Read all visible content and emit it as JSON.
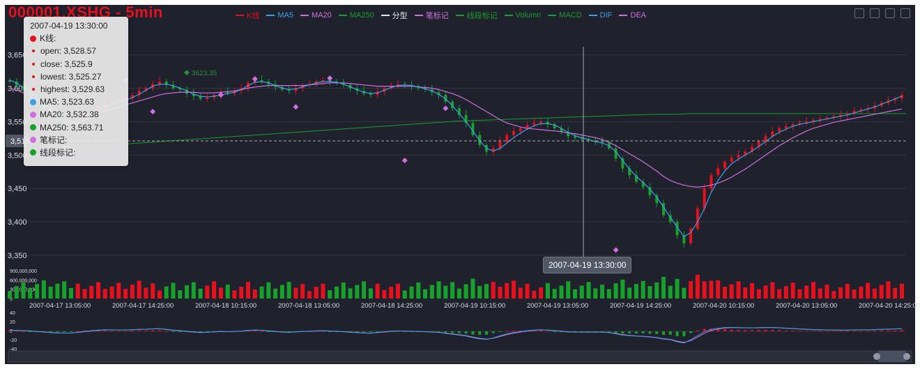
{
  "title": "000001.XSHG - 5min",
  "legend": [
    {
      "label": "K线",
      "color": "#e8101d"
    },
    {
      "label": "MA5",
      "color": "#3aa1e6"
    },
    {
      "label": "MA20",
      "color": "#d070e0"
    },
    {
      "label": "MA250",
      "color": "#17a02a"
    },
    {
      "label": "分型",
      "color": "#e5e5e5"
    },
    {
      "label": "笔标记",
      "color": "#d070e0"
    },
    {
      "label": "线段标记",
      "color": "#17a02a"
    },
    {
      "label": "Volumn",
      "color": "#17a02a"
    },
    {
      "label": "MACD",
      "color": "#17a02a"
    },
    {
      "label": "DIF",
      "color": "#3aa1e6"
    },
    {
      "label": "DEA",
      "color": "#d070e0"
    }
  ],
  "toolbox": [
    "zoom-icon",
    "zoom-reset-icon",
    "restore-icon",
    "save-image-icon"
  ],
  "tooltip": {
    "time": "2007-04-19 13:30:00",
    "kline_label": "K线:",
    "open": "open: 3,528.57",
    "close": "close: 3,525.9",
    "lowest": "lowest: 3,525.27",
    "highest": "highest: 3,529.63",
    "ma5": "MA5: 3,523.63",
    "ma20": "MA20: 3,532.38",
    "ma250": "MA250: 3,563.71",
    "bi": "笔标记:",
    "xd": "线段标记:"
  },
  "axis_pointer": {
    "x_label": "2007-04-19 13:30:00",
    "y_label": "3,515"
  },
  "colors": {
    "background": "#1f212d",
    "up": "#e8101d",
    "down": "#17a02a",
    "ma5": "#3aa1e6",
    "ma20": "#d070e0",
    "ma250": "#17a02a",
    "dif": "#3aa1e6",
    "dea": "#d070e0",
    "grid": "#33363f"
  },
  "chart_data": {
    "type": "candlestick",
    "y_ticks": [
      "3,650",
      "3,600",
      "3,550",
      "3,500",
      "3,450",
      "3,400",
      "3,350"
    ],
    "y_range": [
      3350,
      3660
    ],
    "x_ticks": [
      "2007-04-17 13:05:00",
      "2007-04-17 14:25:00",
      "2007-04-18 10:15:00",
      "2007-04-18 13:05:00",
      "2007-04-18 14:25:00",
      "2007-04-19 10:15:00",
      "2007-04-19 13:05:00",
      "2007-04-19 14:25:00",
      "2007-04-20 10:15:00",
      "2007-04-20 13:05:00",
      "2007-04-20 14:25:00"
    ],
    "close_series": [
      3610,
      3604,
      3598,
      3590,
      3580,
      3570,
      3560,
      3552,
      3548,
      3545,
      3550,
      3558,
      3565,
      3572,
      3578,
      3580,
      3582,
      3585,
      3590,
      3596,
      3600,
      3606,
      3610,
      3605,
      3600,
      3598,
      3592,
      3588,
      3584,
      3586,
      3590,
      3594,
      3592,
      3596,
      3600,
      3608,
      3612,
      3610,
      3606,
      3602,
      3598,
      3596,
      3600,
      3604,
      3606,
      3610,
      3612,
      3610,
      3608,
      3605,
      3600,
      3596,
      3592,
      3590,
      3595,
      3600,
      3604,
      3606,
      3605,
      3603,
      3600,
      3598,
      3594,
      3590,
      3580,
      3570,
      3560,
      3548,
      3530,
      3515,
      3505,
      3510,
      3520,
      3530,
      3536,
      3540,
      3545,
      3548,
      3550,
      3546,
      3540,
      3535,
      3528,
      3526,
      3524,
      3522,
      3520,
      3518,
      3510,
      3495,
      3480,
      3470,
      3460,
      3452,
      3440,
      3428,
      3410,
      3400,
      3380,
      3368,
      3390,
      3420,
      3450,
      3470,
      3480,
      3490,
      3496,
      3500,
      3505,
      3512,
      3520,
      3528,
      3535,
      3540,
      3543,
      3546,
      3548,
      3550,
      3552,
      3554,
      3556,
      3558,
      3560,
      3562,
      3566,
      3568,
      3570,
      3574,
      3578,
      3582,
      3585,
      3590
    ],
    "ma5_series": [
      3612,
      3608,
      3601,
      3594,
      3586,
      3577,
      3568,
      3560,
      3553,
      3549,
      3549,
      3552,
      3558,
      3565,
      3571,
      3576,
      3579,
      3582,
      3586,
      3591,
      3597,
      3603,
      3606,
      3606,
      3604,
      3600,
      3596,
      3591,
      3588,
      3587,
      3588,
      3590,
      3592,
      3594,
      3598,
      3604,
      3609,
      3610,
      3608,
      3604,
      3600,
      3598,
      3599,
      3602,
      3605,
      3608,
      3610,
      3610,
      3609,
      3606,
      3602,
      3598,
      3594,
      3592,
      3593,
      3597,
      3601,
      3604,
      3605,
      3604,
      3602,
      3599,
      3596,
      3591,
      3584,
      3574,
      3562,
      3550,
      3536,
      3522,
      3510,
      3506,
      3510,
      3518,
      3526,
      3533,
      3539,
      3544,
      3547,
      3547,
      3545,
      3540,
      3534,
      3529,
      3526,
      3523,
      3520,
      3518,
      3514,
      3505,
      3492,
      3479,
      3468,
      3459,
      3449,
      3437,
      3422,
      3407,
      3392,
      3378,
      3384,
      3400,
      3420,
      3444,
      3462,
      3476,
      3487,
      3494,
      3500,
      3506,
      3513,
      3520,
      3528,
      3534,
      3539,
      3543,
      3546,
      3548,
      3550,
      3552,
      3554,
      3556,
      3558,
      3560,
      3563,
      3566,
      3569,
      3572,
      3576,
      3580,
      3584,
      3588
    ],
    "ma20_series": [
      3600,
      3597,
      3593,
      3588,
      3582,
      3576,
      3570,
      3565,
      3561,
      3558,
      3557,
      3558,
      3560,
      3563,
      3566,
      3569,
      3572,
      3575,
      3578,
      3581,
      3584,
      3587,
      3590,
      3592,
      3593,
      3594,
      3594,
      3594,
      3593,
      3593,
      3593,
      3594,
      3595,
      3596,
      3598,
      3600,
      3602,
      3603,
      3604,
      3604,
      3604,
      3604,
      3604,
      3604,
      3605,
      3606,
      3607,
      3608,
      3608,
      3608,
      3607,
      3606,
      3605,
      3604,
      3603,
      3603,
      3603,
      3603,
      3603,
      3603,
      3602,
      3601,
      3600,
      3598,
      3595,
      3592,
      3588,
      3583,
      3577,
      3571,
      3565,
      3559,
      3553,
      3548,
      3545,
      3542,
      3540,
      3539,
      3538,
      3537,
      3536,
      3535,
      3533,
      3532,
      3530,
      3528,
      3526,
      3523,
      3519,
      3514,
      3508,
      3502,
      3496,
      3490,
      3483,
      3476,
      3468,
      3462,
      3458,
      3455,
      3453,
      3452,
      3453,
      3455,
      3458,
      3462,
      3467,
      3473,
      3479,
      3486,
      3493,
      3500,
      3507,
      3514,
      3520,
      3526,
      3531,
      3536,
      3540,
      3543,
      3546,
      3549,
      3551,
      3553,
      3555,
      3557,
      3559,
      3561,
      3563,
      3565,
      3567,
      3569
    ],
    "ma250_series": [
      3515,
      3517,
      3519,
      3521,
      3523,
      3525,
      3527,
      3529,
      3531,
      3533,
      3535,
      3537,
      3539,
      3541,
      3543,
      3545,
      3547,
      3549,
      3551,
      3552,
      3553,
      3554,
      3555,
      3556,
      3557,
      3558,
      3559,
      3560,
      3561,
      3561,
      3562,
      3562,
      3562,
      3562,
      3562,
      3562,
      3562,
      3562,
      3562,
      3562,
      3562,
      3562
    ],
    "bi_marks": [
      {
        "i": 8,
        "v": 3510
      },
      {
        "i": 17,
        "v": 3612
      },
      {
        "i": 21,
        "v": 3565
      },
      {
        "i": 31,
        "v": 3590
      },
      {
        "i": 36,
        "v": 3614
      },
      {
        "i": 42,
        "v": 3572
      },
      {
        "i": 47,
        "v": 3615
      },
      {
        "i": 58,
        "v": 3492
      },
      {
        "i": 64,
        "v": 3570
      },
      {
        "i": 89,
        "v": 3358
      }
    ],
    "xd_mark": {
      "i": 26,
      "v": 3623.35,
      "label": "3623.35"
    },
    "volume_ticks": [
      "900,000,000",
      "600,000,000",
      "300,000,000",
      "0"
    ],
    "macd_ticks": [
      "40",
      "20",
      "0",
      "-20",
      "-40"
    ]
  }
}
